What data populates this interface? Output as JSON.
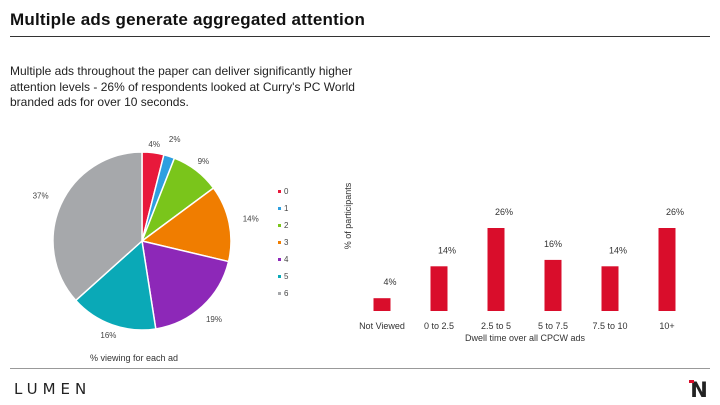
{
  "header": {
    "title": "Multiple ads generate aggregated attention",
    "subtitle": "Multiple ads throughout the paper can deliver significantly higher attention levels - 26% of respondents looked at Curry's PC World branded ads for over 10 seconds."
  },
  "footer": {
    "brand": "LUMEN",
    "badge_letter": "N",
    "badge_colors": {
      "main": "#222222",
      "accent": "#d90d2b"
    }
  },
  "chart_data": [
    {
      "type": "pie",
      "title": "",
      "caption": "% viewing for each ad",
      "slices": [
        {
          "label": "0",
          "value": 4,
          "display": "4%",
          "color": "#e8193b"
        },
        {
          "label": "1",
          "value": 2,
          "display": "2%",
          "color": "#2e9fe0"
        },
        {
          "label": "2",
          "value": 9,
          "display": "9%",
          "color": "#7ac51b"
        },
        {
          "label": "3",
          "value": 14,
          "display": "14%",
          "color": "#f07d00"
        },
        {
          "label": "4",
          "value": 19,
          "display": "19%",
          "color": "#8d28b8"
        },
        {
          "label": "5",
          "value": 16,
          "display": "16%",
          "color": "#0aa9b7"
        },
        {
          "label": "6",
          "value": 37,
          "display": "37%",
          "color": "#a6a8ab"
        }
      ],
      "legend_placement": "right"
    },
    {
      "type": "bar",
      "categories": [
        "Not Viewed",
        "0 to 2.5",
        "2.5 to 5",
        "5 to 7.5",
        "7.5 to 10",
        "10+"
      ],
      "values": [
        4,
        14,
        26,
        16,
        14,
        26
      ],
      "data_labels": [
        "4%",
        "14%",
        "26%",
        "16%",
        "14%",
        "26%"
      ],
      "xlabel": "Dwell time over all CPCW ads",
      "ylabel": "% of participants",
      "ylim": [
        0,
        30
      ],
      "color": "#d90d2b",
      "grid": false
    }
  ]
}
